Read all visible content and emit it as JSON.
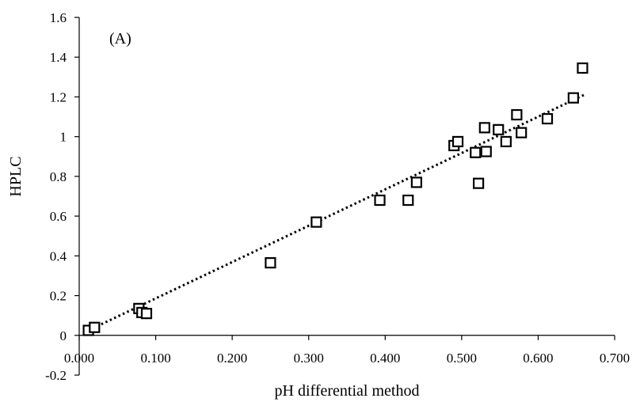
{
  "chart_data": {
    "type": "scatter",
    "panel_label": "(A)",
    "title": "",
    "xlabel": "pH differential method",
    "ylabel": "HPLC",
    "xlim": [
      0,
      0.7
    ],
    "ylim": [
      -0.2,
      1.6
    ],
    "x_ticks": [
      0,
      0.1,
      0.2,
      0.3,
      0.4,
      0.5,
      0.6,
      0.7
    ],
    "x_tick_labels": [
      "0.000",
      "0.100",
      "0.200",
      "0.300",
      "0.400",
      "0.500",
      "0.600",
      "0.700"
    ],
    "y_ticks": [
      -0.2,
      0,
      0.2,
      0.4,
      0.6,
      0.8,
      1,
      1.2,
      1.4,
      1.6
    ],
    "y_tick_labels": [
      "-0.2",
      "0",
      "0.2",
      "0.4",
      "0.6",
      "0.8",
      "1",
      "1.2",
      "1.4",
      "1.6"
    ],
    "grid": false,
    "legend": "none",
    "marker": "open-square",
    "points": [
      {
        "x": 0.012,
        "y": 0.025
      },
      {
        "x": 0.02,
        "y": 0.04
      },
      {
        "x": 0.078,
        "y": 0.135
      },
      {
        "x": 0.082,
        "y": 0.115
      },
      {
        "x": 0.088,
        "y": 0.11
      },
      {
        "x": 0.25,
        "y": 0.365
      },
      {
        "x": 0.31,
        "y": 0.57
      },
      {
        "x": 0.393,
        "y": 0.68
      },
      {
        "x": 0.43,
        "y": 0.68
      },
      {
        "x": 0.441,
        "y": 0.77
      },
      {
        "x": 0.49,
        "y": 0.955
      },
      {
        "x": 0.495,
        "y": 0.975
      },
      {
        "x": 0.518,
        "y": 0.92
      },
      {
        "x": 0.522,
        "y": 0.765
      },
      {
        "x": 0.53,
        "y": 1.045
      },
      {
        "x": 0.532,
        "y": 0.925
      },
      {
        "x": 0.548,
        "y": 1.035
      },
      {
        "x": 0.558,
        "y": 0.975
      },
      {
        "x": 0.572,
        "y": 1.11
      },
      {
        "x": 0.578,
        "y": 1.02
      },
      {
        "x": 0.612,
        "y": 1.09
      },
      {
        "x": 0.646,
        "y": 1.195
      },
      {
        "x": 0.658,
        "y": 1.345
      }
    ],
    "trendline": {
      "style": "dotted",
      "x": [
        0.012,
        0.66
      ],
      "y": [
        0.025,
        1.21
      ]
    },
    "colors": {
      "axis": "#000000",
      "marker_stroke": "#000000",
      "trendline": "#000000"
    }
  }
}
